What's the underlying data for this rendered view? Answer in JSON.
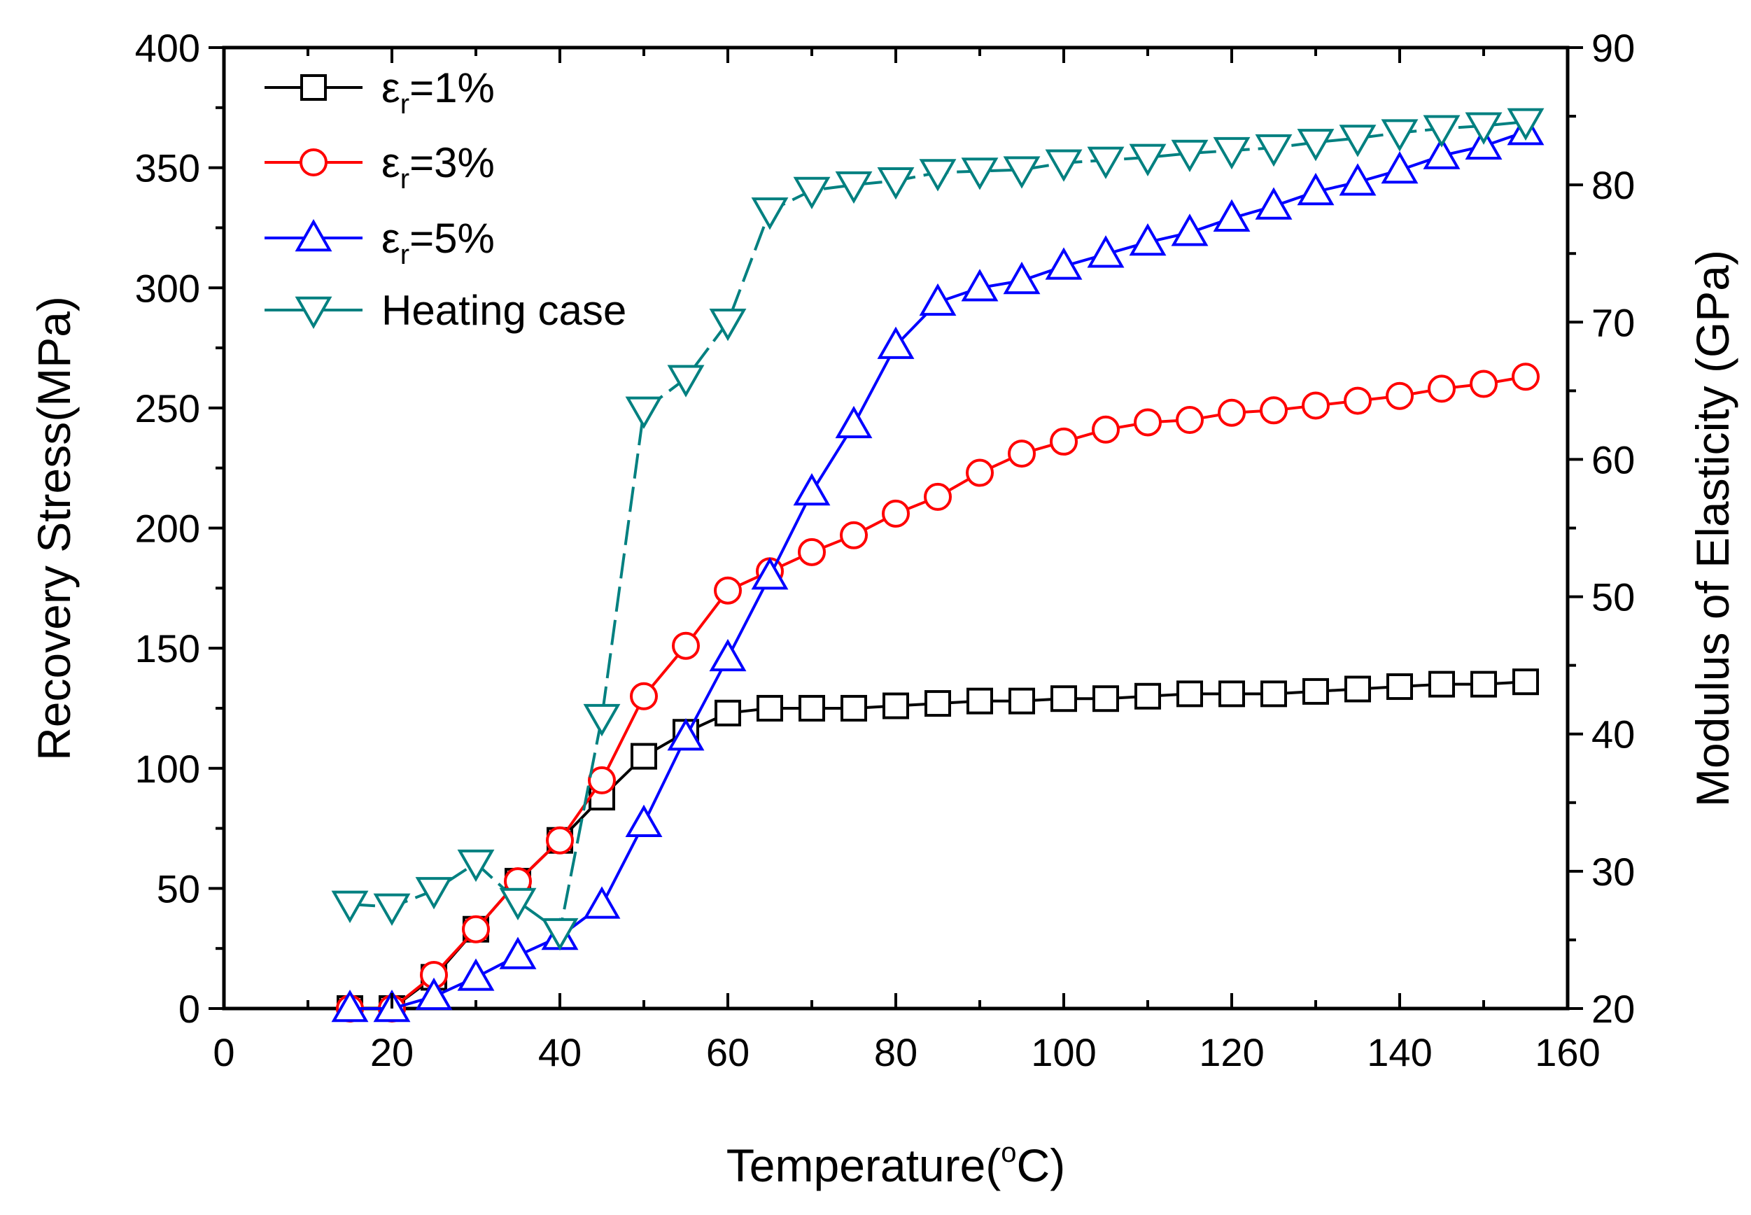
{
  "chart_data": {
    "type": "line",
    "title": "",
    "xlabel": "Temperature(",
    "xlabel_unit_sup": "o",
    "xlabel_unit": "C)",
    "ylabel": "Recovery Stress(MPa)",
    "y2label": "Modulus of Elasticity (GPa)",
    "xlim": [
      0,
      160
    ],
    "ylim": [
      0,
      400
    ],
    "y2lim": [
      20,
      90
    ],
    "xticks": [
      0,
      20,
      40,
      60,
      80,
      100,
      120,
      140,
      160
    ],
    "yticks": [
      0,
      50,
      100,
      150,
      200,
      250,
      300,
      350,
      400
    ],
    "y2ticks": [
      20,
      30,
      40,
      50,
      60,
      70,
      80,
      90
    ],
    "grid": false,
    "legend_position": "top-left",
    "series": [
      {
        "name": "εr=1%",
        "legend_main": "ε",
        "legend_sub": "r",
        "legend_tail": "=1%",
        "color": "#000000",
        "marker": "square",
        "axis": "left",
        "dashed": false,
        "x": [
          15,
          20,
          25,
          30,
          35,
          40,
          45,
          50,
          55,
          60,
          65,
          70,
          75,
          80,
          85,
          90,
          95,
          100,
          105,
          110,
          115,
          120,
          125,
          130,
          135,
          140,
          145,
          150,
          155
        ],
        "y": [
          0,
          0,
          13,
          33,
          53,
          70,
          88,
          105,
          115,
          123,
          125,
          125,
          125,
          126,
          127,
          128,
          128,
          129,
          129,
          130,
          131,
          131,
          131,
          132,
          133,
          134,
          135,
          135,
          136
        ]
      },
      {
        "name": "εr=3%",
        "legend_main": "ε",
        "legend_sub": "r",
        "legend_tail": "=3%",
        "color": "#ff0000",
        "marker": "circle",
        "axis": "left",
        "dashed": false,
        "x": [
          15,
          20,
          25,
          30,
          35,
          40,
          45,
          50,
          55,
          60,
          65,
          70,
          75,
          80,
          85,
          90,
          95,
          100,
          105,
          110,
          115,
          120,
          125,
          130,
          135,
          140,
          145,
          150,
          155
        ],
        "y": [
          0,
          0,
          14,
          33,
          53,
          70,
          95,
          130,
          151,
          174,
          182,
          190,
          197,
          206,
          213,
          223,
          231,
          236,
          241,
          244,
          245,
          248,
          249,
          251,
          253,
          255,
          258,
          260,
          263
        ]
      },
      {
        "name": "εr=5%",
        "legend_main": "ε",
        "legend_sub": "r",
        "legend_tail": "=5%",
        "color": "#0000ff",
        "marker": "triangle-up",
        "axis": "left",
        "dashed": false,
        "x": [
          15,
          20,
          25,
          30,
          35,
          40,
          45,
          50,
          55,
          60,
          65,
          70,
          75,
          80,
          85,
          90,
          95,
          100,
          105,
          110,
          115,
          120,
          125,
          130,
          135,
          140,
          145,
          150,
          155
        ],
        "y": [
          0,
          0,
          5,
          13,
          22,
          30,
          43,
          77,
          113,
          146,
          180,
          215,
          243,
          276,
          294,
          300,
          303,
          309,
          314,
          319,
          323,
          329,
          334,
          340,
          344,
          349,
          355,
          359,
          365
        ]
      },
      {
        "name": "Heating case",
        "legend_main": "Heating case",
        "legend_sub": "",
        "legend_tail": "",
        "color": "#008080",
        "marker": "triangle-down",
        "axis": "right",
        "dashed": true,
        "x": [
          15,
          20,
          25,
          30,
          35,
          40,
          45,
          50,
          55,
          60,
          65,
          70,
          75,
          80,
          85,
          90,
          95,
          100,
          105,
          110,
          115,
          120,
          125,
          130,
          135,
          140,
          145,
          150,
          155
        ],
        "y": [
          27.6,
          27.4,
          28.6,
          30.6,
          27.8,
          25.6,
          41.2,
          63.6,
          65.9,
          70.0,
          78.1,
          79.6,
          80.0,
          80.3,
          80.9,
          81.0,
          81.1,
          81.6,
          81.8,
          82.0,
          82.3,
          82.5,
          82.7,
          83.1,
          83.4,
          83.8,
          84.1,
          84.3,
          84.6
        ]
      }
    ]
  }
}
